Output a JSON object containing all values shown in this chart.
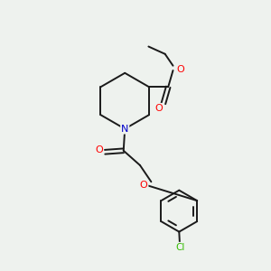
{
  "background_color": "#eef2ee",
  "bond_color": "#1a1a1a",
  "atom_colors": {
    "O": "#ff0000",
    "N": "#0000cc",
    "Cl": "#33bb00",
    "C": "#1a1a1a"
  },
  "figsize": [
    3.0,
    3.0
  ],
  "dpi": 100,
  "lw": 1.4,
  "fontsize": 7.5
}
